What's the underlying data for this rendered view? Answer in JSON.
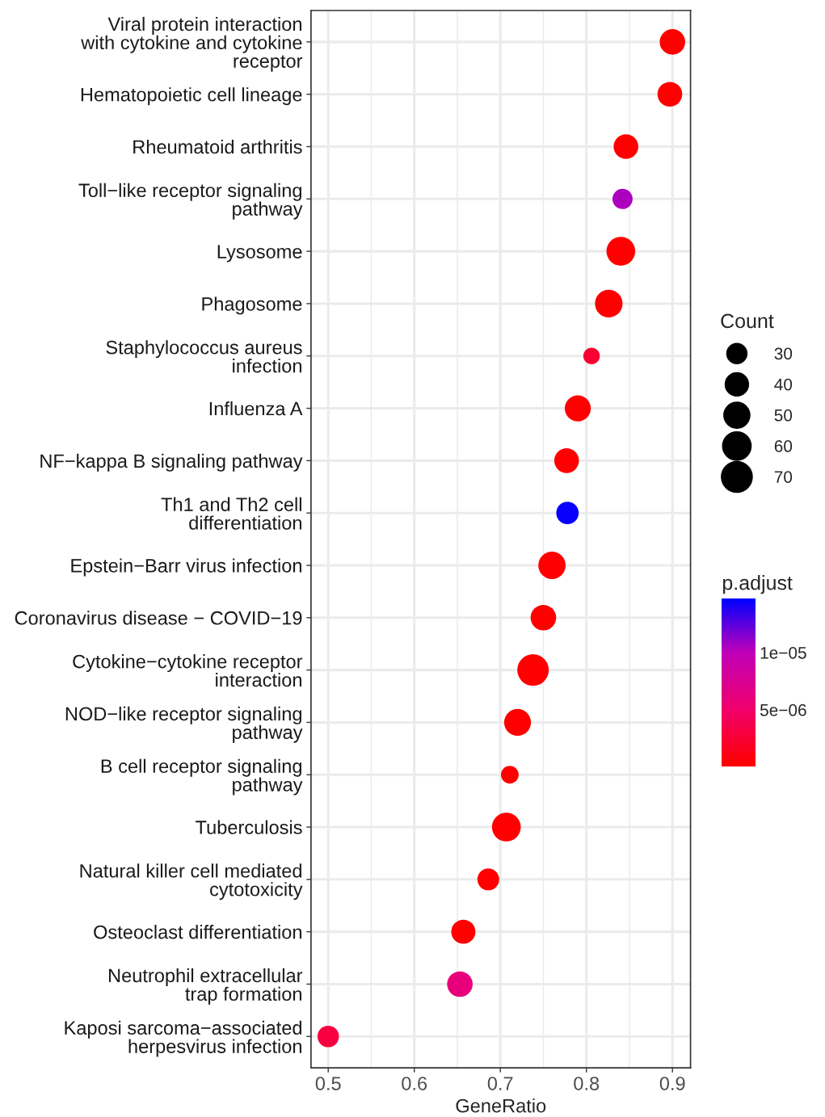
{
  "chart_data": {
    "type": "bubble",
    "xlabel": "GeneRatio",
    "categories": [
      "Viral protein interaction\nwith cytokine and cytokine\nreceptor",
      "Hematopoietic cell lineage",
      "Rheumatoid arthritis",
      "Toll−like receptor signaling\npathway",
      "Lysosome",
      "Phagosome",
      "Staphylococcus aureus\ninfection",
      "Influenza A",
      "NF−kappa B signaling pathway",
      "Th1 and Th2 cell\ndifferentiation",
      "Epstein−Barr virus infection",
      "Coronavirus disease − COVID−19",
      "Cytokine−cytokine receptor\ninteraction",
      "NOD−like receptor signaling\npathway",
      "B cell receptor signaling\npathway",
      "Tuberculosis",
      "Natural killer cell mediated\ncytotoxicity",
      "Osteoclast differentiation",
      "Neutrophil extracellular\ntrap formation",
      "Kaposi sarcoma−associated\nherpesvirus infection"
    ],
    "values": [
      0.9,
      0.897,
      0.846,
      0.842,
      0.84,
      0.826,
      0.806,
      0.79,
      0.777,
      0.778,
      0.76,
      0.75,
      0.738,
      0.72,
      0.711,
      0.707,
      0.686,
      0.657,
      0.653,
      0.5
    ],
    "sizes": [
      48,
      45,
      45,
      30,
      61,
      56,
      20,
      50,
      45,
      37,
      55,
      48,
      73,
      53,
      23,
      61,
      35,
      43,
      48,
      34
    ],
    "cvalues": [
      1e-07,
      1e-07,
      1e-07,
      1.05e-05,
      1e-07,
      1e-07,
      2.5e-06,
      1e-07,
      1e-07,
      1.45e-05,
      1e-07,
      1e-07,
      1e-07,
      1e-07,
      1e-07,
      1e-07,
      1e-07,
      1e-07,
      6e-06,
      3e-06
    ],
    "orientation": "horizontal",
    "size_legend": [
      30,
      40,
      50,
      60,
      70
    ],
    "legend_title": "Count",
    "clabel": "p.adjust",
    "clim": [
      7e-08,
      1.47e-05
    ],
    "cticks": [
      {
        "value": 5e-06,
        "label": "5e−06"
      },
      {
        "value": 1e-05,
        "label": "1e−05"
      }
    ],
    "xlim": [
      0.48,
      0.921
    ],
    "xticks": [
      0.5,
      0.6,
      0.7,
      0.8,
      0.9
    ],
    "grid": true
  }
}
